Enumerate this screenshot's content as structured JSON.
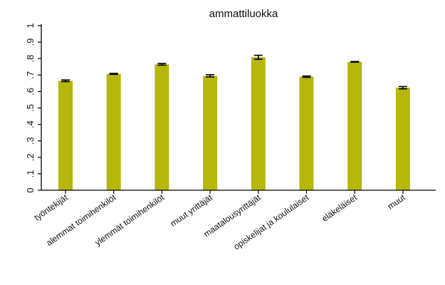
{
  "chart_data": {
    "type": "bar",
    "title": "ammattiluokka",
    "xlabel": "",
    "ylabel": "",
    "ylim": [
      0,
      1
    ],
    "yticks": [
      0,
      0.1,
      0.2,
      0.3,
      0.4,
      0.5,
      0.6,
      0.7,
      0.8,
      0.9,
      1
    ],
    "ytick_labels": [
      "0",
      ".1",
      ".2",
      ".3",
      ".4",
      ".5",
      ".6",
      ".7",
      ".8",
      ".9",
      "1"
    ],
    "categories": [
      "työntekijät",
      "alemmat toimihenkilöt",
      "ylemmät toimihenkilöt",
      "muut yrittäjät",
      "maatalousyrittäjät",
      "opiskelijat ja koululaiset",
      "eläkeläiset",
      "muut"
    ],
    "values": [
      0.665,
      0.707,
      0.765,
      0.695,
      0.808,
      0.69,
      0.78,
      0.623
    ],
    "error_low": [
      0.66,
      0.704,
      0.76,
      0.688,
      0.796,
      0.686,
      0.778,
      0.616
    ],
    "error_high": [
      0.67,
      0.71,
      0.77,
      0.702,
      0.82,
      0.694,
      0.782,
      0.63
    ],
    "bar_color": "#b5b80a",
    "error_color": "#000000",
    "grid": false,
    "legend": "none"
  }
}
